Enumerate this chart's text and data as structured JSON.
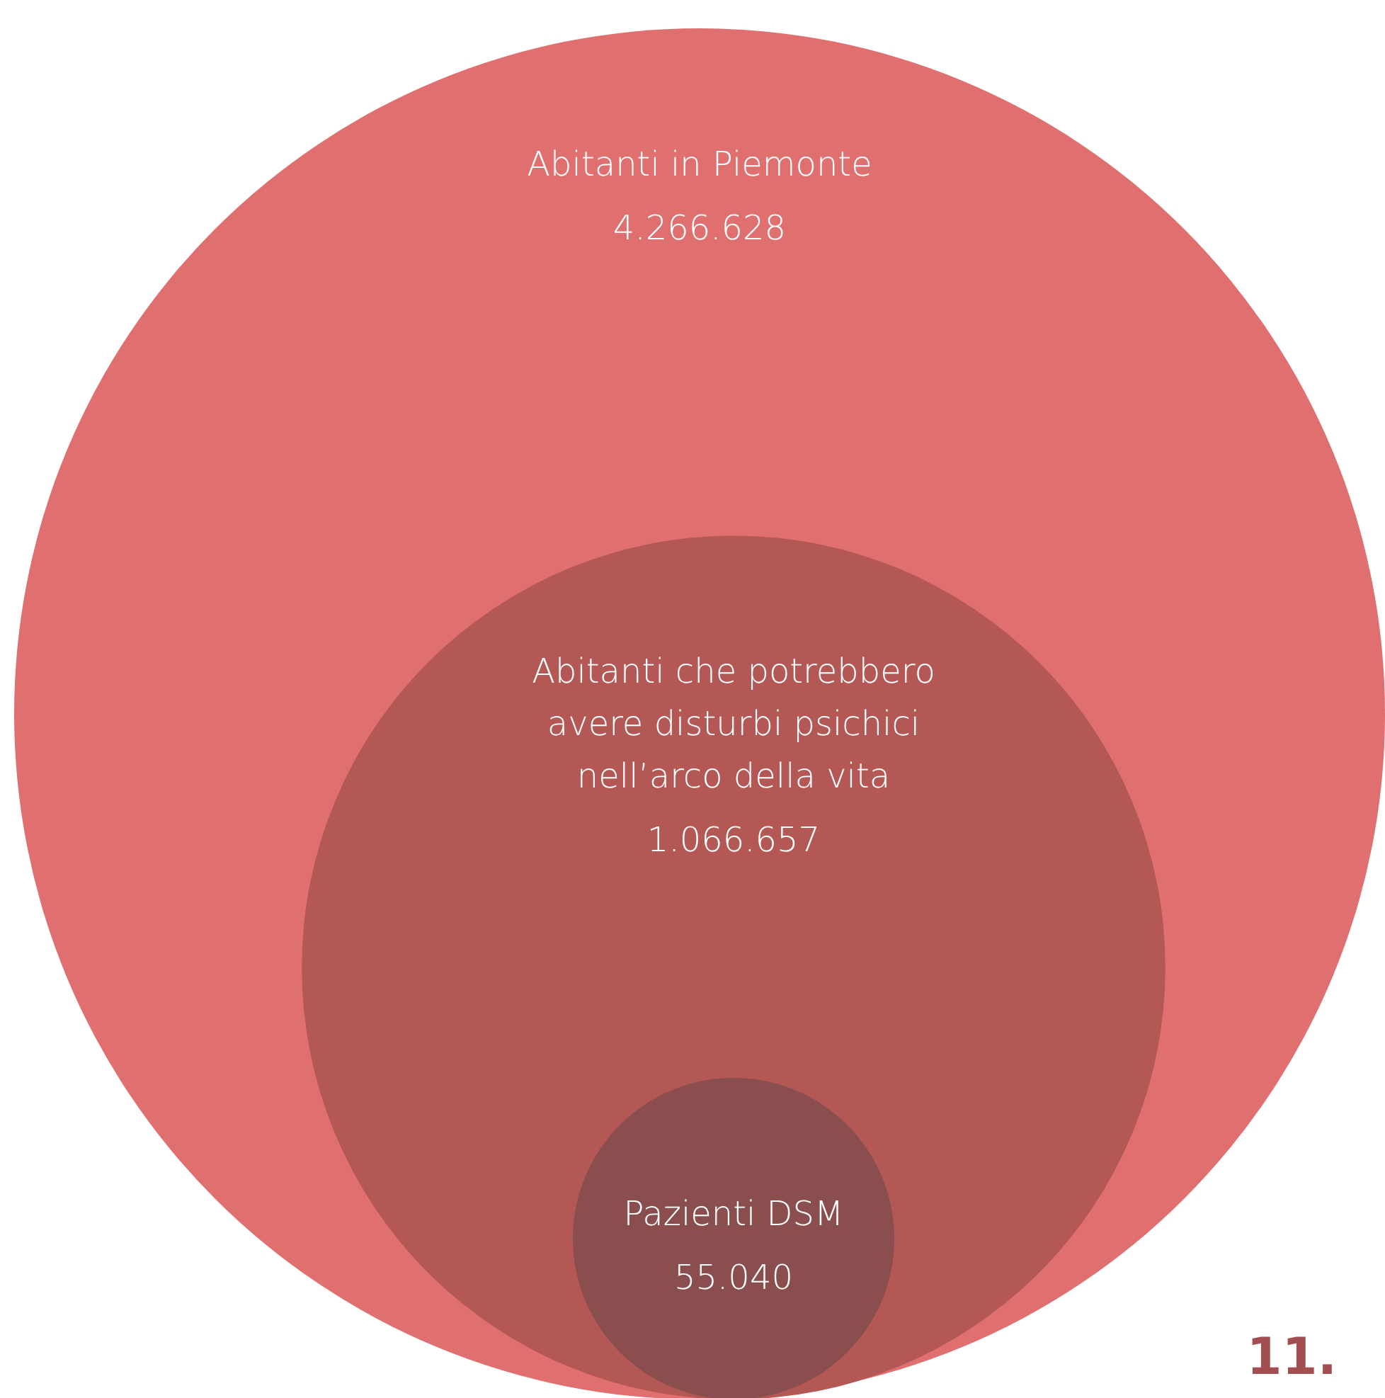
{
  "chart_data": {
    "type": "other",
    "categories": [
      "Abitanti in Piemonte",
      "Abitanti che potrebbero avere disturbi psichici nell’arco della vita",
      "Pazienti DSM"
    ],
    "values": [
      4266628,
      1066657,
      55040
    ],
    "value_labels": [
      "4.266.628",
      "1.066.657",
      "55.040"
    ],
    "colors": [
      "#e07070",
      "#b35855",
      "#8a4e4f"
    ],
    "annotations": [
      "11."
    ]
  }
}
